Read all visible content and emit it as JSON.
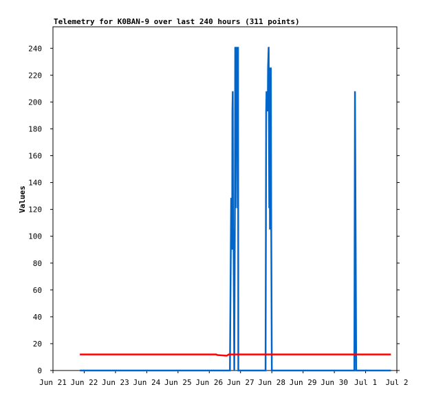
{
  "chart_data": {
    "type": "line",
    "title": "Telemetry for K0BAN-9 over last 240 hours (311 points)",
    "xlabel": "",
    "ylabel": "Values",
    "x_tick_labels": [
      "Jun 21",
      "Jun 22",
      "Jun 23",
      "Jun 24",
      "Jun 25",
      "Jun 26",
      "Jun 27",
      "Jun 28",
      "Jun 29",
      "Jun 30",
      "Jul 1",
      "Jul 2"
    ],
    "y_ticks": [
      0,
      20,
      40,
      60,
      80,
      100,
      120,
      140,
      160,
      180,
      200,
      220,
      240
    ],
    "xlim": [
      0,
      11
    ],
    "ylim": [
      0,
      256
    ],
    "grid": false,
    "legend": "none",
    "x_units": "days after Jun 21 00:00",
    "series": [
      {
        "color": "#0066cc",
        "points": [
          [
            0.86,
            0
          ],
          [
            5.66,
            0
          ],
          [
            5.7,
            128
          ],
          [
            5.72,
            128
          ],
          [
            5.73,
            90
          ],
          [
            5.74,
            193
          ],
          [
            5.75,
            208
          ],
          [
            5.76,
            105
          ],
          [
            5.78,
            90
          ],
          [
            5.8,
            0
          ],
          [
            5.82,
            121
          ],
          [
            5.83,
            241
          ],
          [
            5.84,
            121
          ],
          [
            5.86,
            241
          ],
          [
            5.88,
            205
          ],
          [
            5.89,
            241
          ],
          [
            5.91,
            121
          ],
          [
            5.92,
            241
          ],
          [
            5.93,
            0
          ],
          [
            6.8,
            0
          ],
          [
            6.82,
            193
          ],
          [
            6.83,
            208
          ],
          [
            6.85,
            200
          ],
          [
            6.86,
            208
          ],
          [
            6.87,
            193
          ],
          [
            6.88,
            225
          ],
          [
            6.9,
            241
          ],
          [
            6.92,
            121
          ],
          [
            6.93,
            209
          ],
          [
            6.94,
            105
          ],
          [
            6.95,
            225
          ],
          [
            6.97,
            225
          ],
          [
            6.98,
            113
          ],
          [
            7.0,
            0
          ],
          [
            9.64,
            0
          ],
          [
            9.66,
            208
          ],
          [
            9.68,
            105
          ],
          [
            9.7,
            0
          ],
          [
            10.81,
            0
          ]
        ]
      },
      {
        "color": "#ff0000",
        "points": [
          [
            0.86,
            12
          ],
          [
            5.22,
            12
          ],
          [
            5.26,
            11.5
          ],
          [
            5.56,
            11
          ],
          [
            5.62,
            12
          ],
          [
            10.81,
            12
          ]
        ]
      }
    ]
  }
}
